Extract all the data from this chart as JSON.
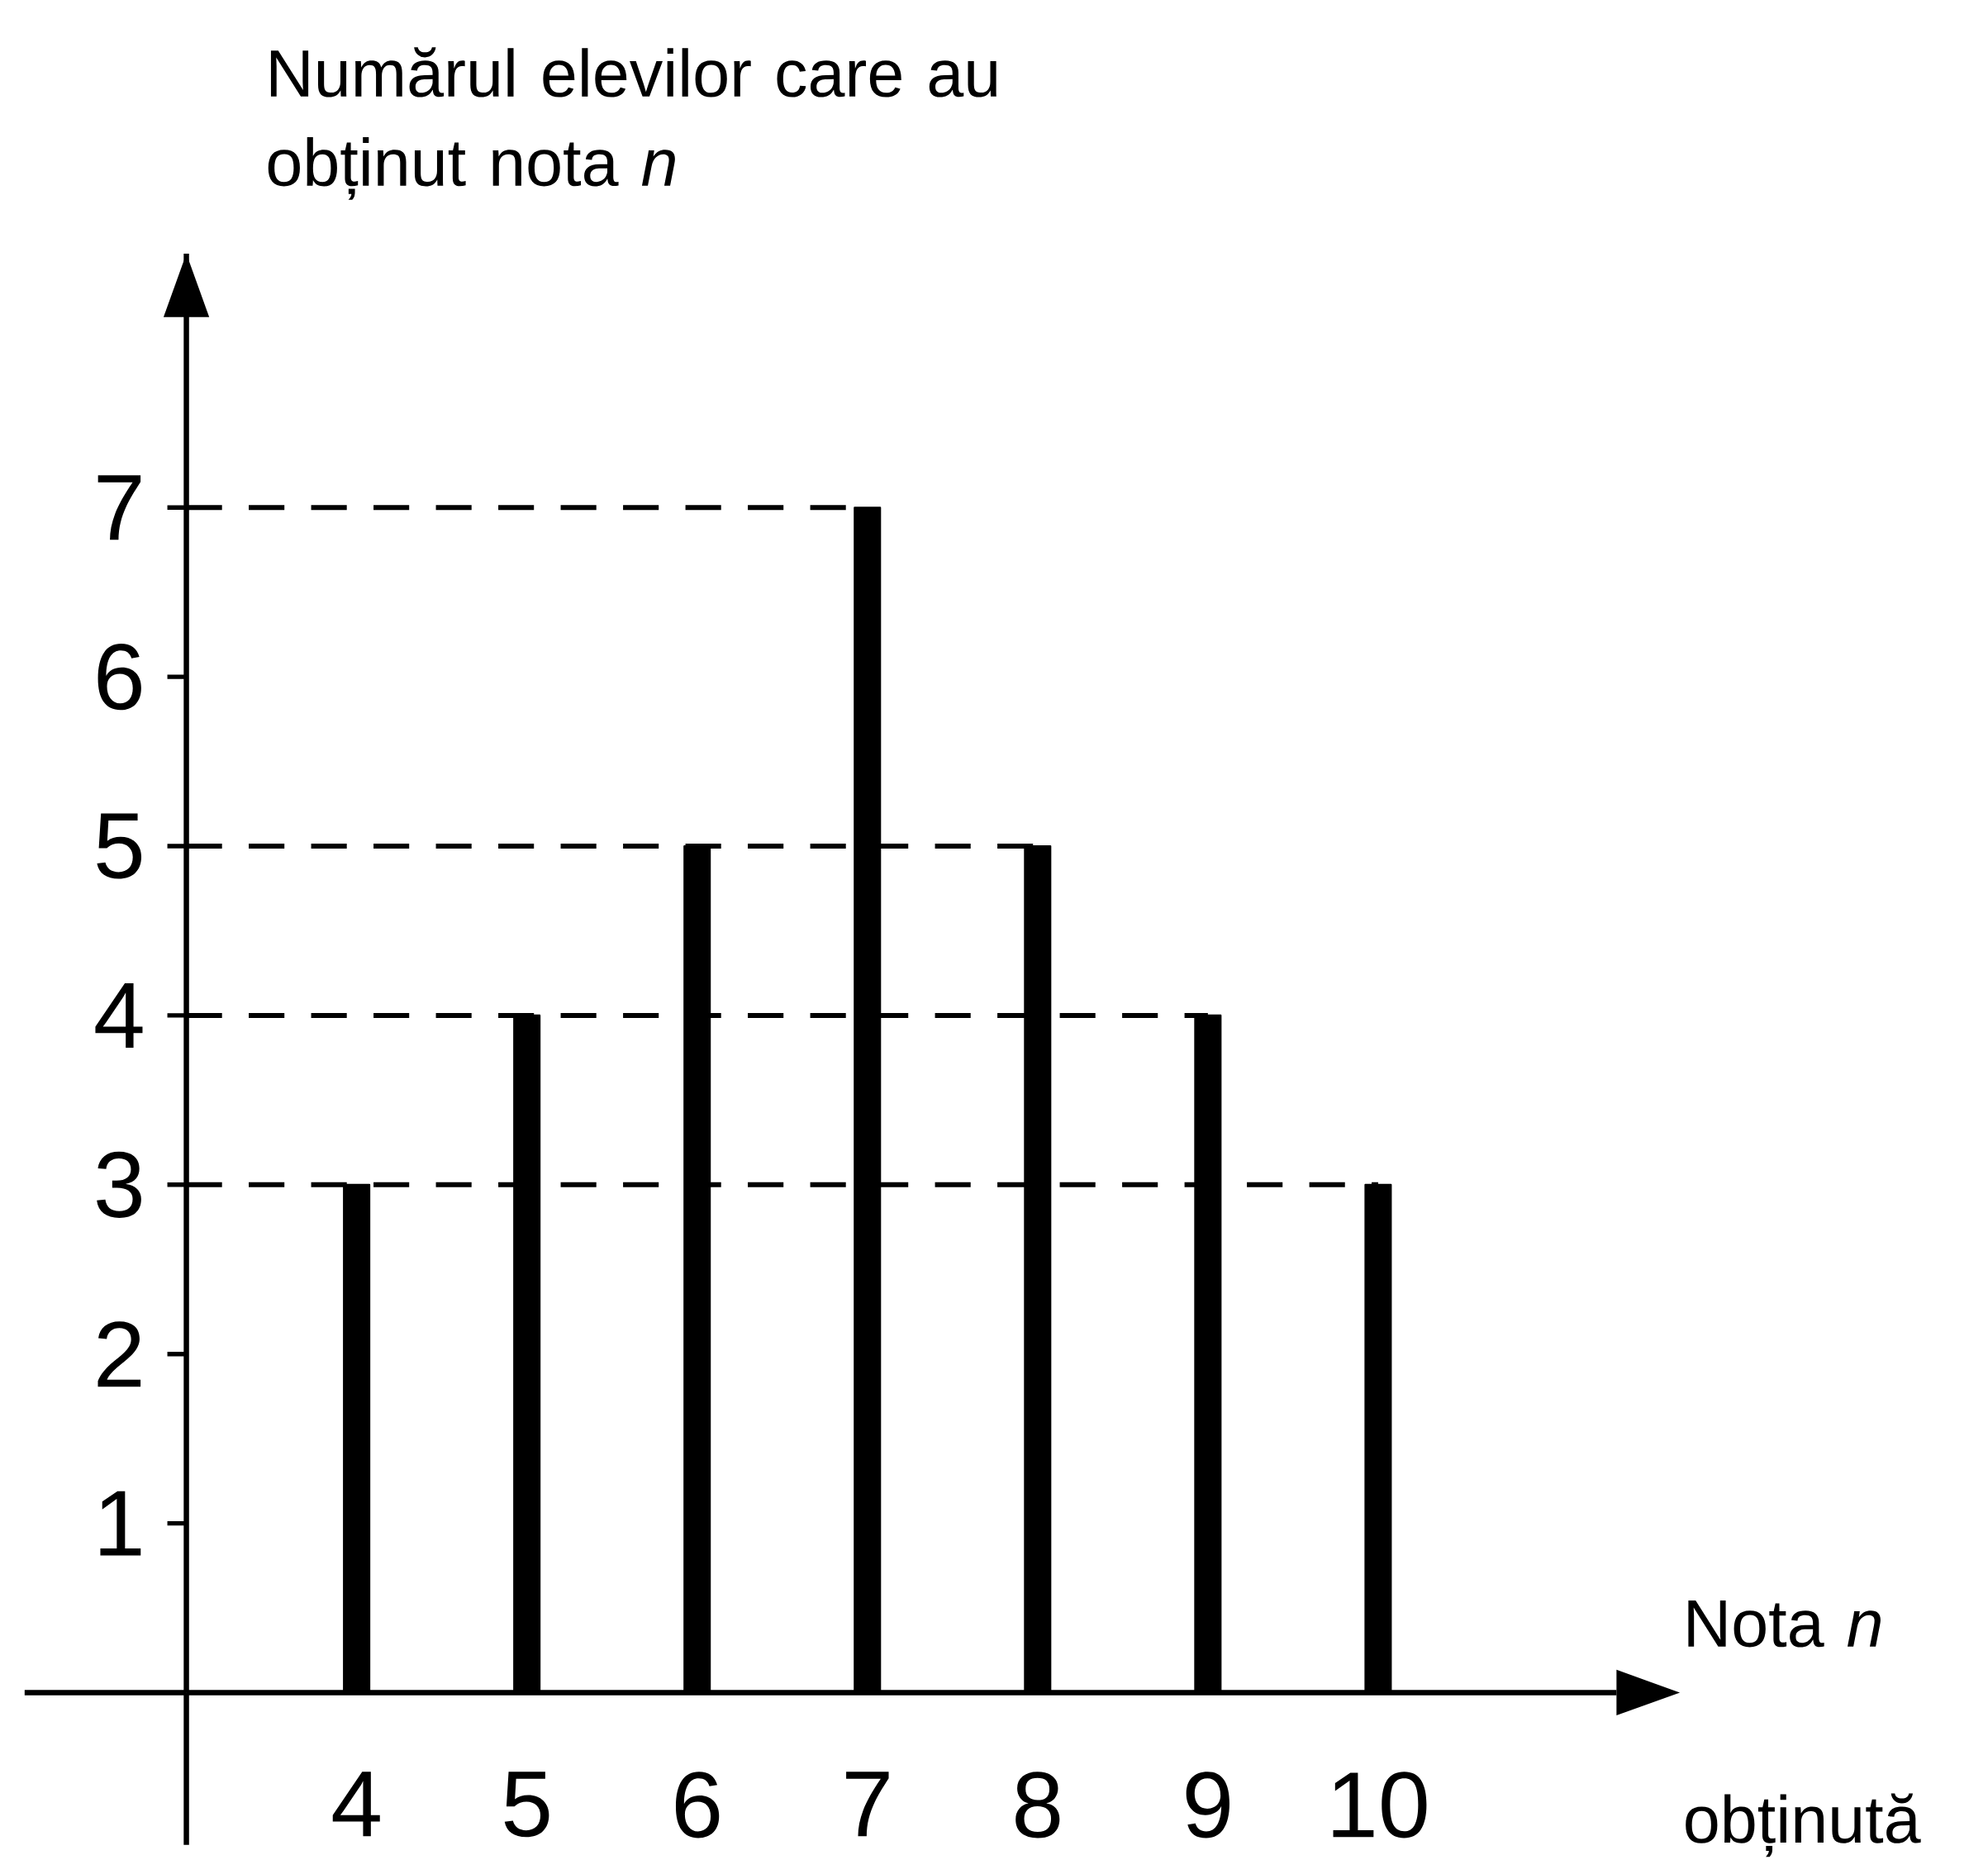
{
  "chart_data": {
    "type": "bar",
    "ylabel": "Numărul elevilor care au obținut nota *n*",
    "xlabel": "Nota *n* obținută",
    "x": [
      4,
      5,
      6,
      7,
      8,
      9,
      10
    ],
    "values": [
      3,
      4,
      5,
      7,
      5,
      4,
      3
    ],
    "color": "#000000",
    "xlim": [
      3,
      11.4
    ],
    "ylim": [
      0,
      8.5
    ],
    "xticks": [
      4,
      5,
      6,
      7,
      8,
      9,
      10
    ],
    "yticks": [
      1,
      2,
      3,
      4,
      5,
      6,
      7
    ],
    "ref_lines": [
      {
        "axis": "y",
        "value": 3,
        "line_style": "dashed"
      },
      {
        "axis": "y",
        "value": 4,
        "line_style": "dashed"
      },
      {
        "axis": "y",
        "value": 5,
        "line_style": "dashed"
      },
      {
        "axis": "y",
        "value": 7,
        "line_style": "dashed"
      }
    ]
  }
}
